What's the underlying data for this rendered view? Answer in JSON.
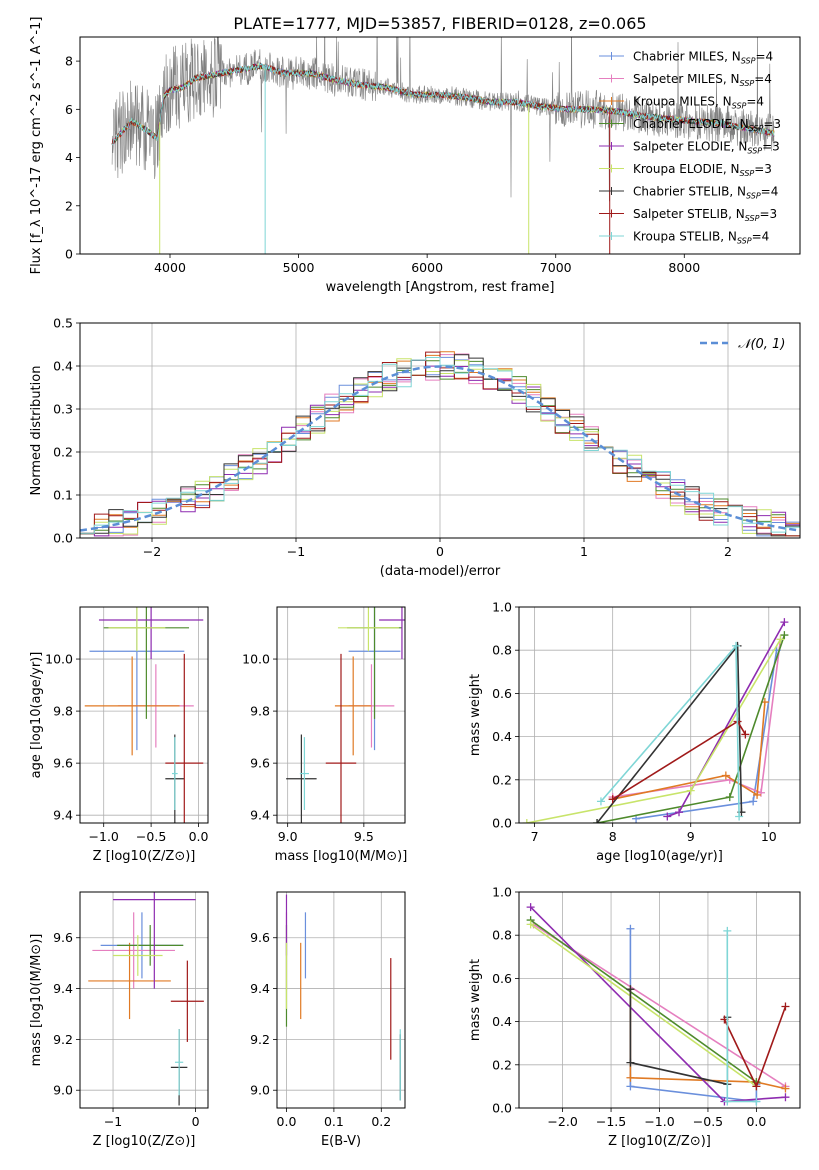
{
  "figure": {
    "title": "PLATE=1777, MJD=53857, FIBERID=0128, z=0.065"
  },
  "colors": {
    "models": [
      "#6a8fdc",
      "#e57fbf",
      "#e07a24",
      "#4e8a2c",
      "#8e2cb0",
      "#c8e46a",
      "#333333",
      "#a01a1a",
      "#7fd6d6"
    ],
    "data": "#808080",
    "gaussian": "#5b8ed6",
    "grid": "#b0b0b0"
  },
  "chart_data": [
    {
      "id": "spectrum",
      "type": "line",
      "xlabel": "wavelength [Angstrom, rest frame]",
      "ylabel": "Flux [f_λ 10^-17 erg cm^-2 s^-1 A^-1]",
      "xlim": [
        3300,
        8900
      ],
      "ylim": [
        0,
        9
      ],
      "xticks": [
        4000,
        5000,
        6000,
        7000,
        8000
      ],
      "yticks": [
        0,
        2,
        4,
        6,
        8
      ],
      "grid": false,
      "legend_position": "top-right",
      "legend": [
        {
          "base": "Chabrier MILES, N",
          "sub": "SSP",
          "tail": "=4"
        },
        {
          "base": "Salpeter MILES, N",
          "sub": "SSP",
          "tail": "=4"
        },
        {
          "base": "Kroupa MILES, N",
          "sub": "SSP",
          "tail": "=4"
        },
        {
          "base": "Chabrier ELODIE, N",
          "sub": "SSP",
          "tail": "=3"
        },
        {
          "base": "Salpeter ELODIE, N",
          "sub": "SSP",
          "tail": "=3"
        },
        {
          "base": "Kroupa ELODIE, N",
          "sub": "SSP",
          "tail": "=3"
        },
        {
          "base": "Chabrier STELIB, N",
          "sub": "SSP",
          "tail": "=4"
        },
        {
          "base": "Salpeter STELIB, N",
          "sub": "SSP",
          "tail": "=3"
        },
        {
          "base": "Kroupa STELIB, N",
          "sub": "SSP",
          "tail": "=4"
        }
      ],
      "continuum": {
        "x": [
          3550,
          3600,
          3700,
          3800,
          3900,
          3950,
          4000,
          4100,
          4200,
          4300,
          4400,
          4500,
          4700,
          4900,
          5100,
          5300,
          5500,
          5700,
          5900,
          6100,
          6300,
          6500,
          6700,
          6900,
          7100,
          7300,
          7500,
          7700,
          7900,
          8100,
          8300,
          8500,
          8700
        ],
        "y": [
          4.6,
          4.9,
          5.5,
          5.2,
          4.8,
          6.5,
          6.8,
          6.9,
          7.3,
          7.4,
          7.5,
          7.6,
          7.8,
          7.5,
          7.5,
          7.2,
          7.0,
          6.9,
          6.6,
          6.6,
          6.5,
          6.3,
          6.3,
          6.1,
          6.0,
          6.0,
          5.9,
          5.7,
          5.6,
          5.5,
          5.4,
          5.2,
          5.0
        ]
      }
    },
    {
      "id": "residuals",
      "type": "line",
      "xlabel": "(data-model)/error",
      "ylabel": "Normed distribution",
      "xlim": [
        -2.5,
        2.5
      ],
      "ylim": [
        0,
        0.5
      ],
      "xticks": [
        -2,
        -1,
        0,
        1,
        2
      ],
      "yticks": [
        0.0,
        0.1,
        0.2,
        0.3,
        0.4,
        0.5
      ],
      "grid": true,
      "legend_position": "top-right",
      "legend": [
        {
          "name": "𝒩(0, 1)"
        }
      ],
      "bin_width": 0.1,
      "curve": {
        "mu": 0,
        "sigma": 1
      }
    },
    {
      "id": "age_vs_Z",
      "type": "scatter",
      "xlabel": "Z [log10(Z/Z⊙)]",
      "ylabel": "age [log10(age/yr)]",
      "xlim": [
        -1.25,
        0.1
      ],
      "ylim": [
        9.37,
        10.2
      ],
      "xticks": [
        -1,
        -0.5,
        0
      ],
      "yticks": [
        9.4,
        9.6,
        9.8,
        10.0
      ],
      "grid": true,
      "points": [
        {
          "x": -0.65,
          "xerr": 0.5,
          "y": 10.03,
          "yerr": 0.38
        },
        {
          "x": -0.45,
          "xerr": 0.4,
          "y": 9.82,
          "yerr": 0.16
        },
        {
          "x": -0.7,
          "xerr": 0.5,
          "y": 9.82,
          "yerr": 0.19
        },
        {
          "x": -0.55,
          "xerr": 0.45,
          "y": 10.12,
          "yerr": 0.35
        },
        {
          "x": -0.5,
          "xerr": 0.55,
          "y": 10.15,
          "yerr": 0.15
        },
        {
          "x": -0.65,
          "xerr": 0.3,
          "y": 10.12,
          "yerr": 0.09
        },
        {
          "x": -0.25,
          "xerr": 0.1,
          "y": 9.54,
          "yerr": 0.17
        },
        {
          "x": -0.15,
          "xerr": 0.2,
          "y": 9.6,
          "yerr": 0.42
        },
        {
          "x": -0.25,
          "xerr": 0.03,
          "y": 9.56,
          "yerr": 0.14
        }
      ]
    },
    {
      "id": "age_vs_mass",
      "type": "scatter",
      "xlabel": "mass [log10(M/M⊙)]",
      "ylabel": "",
      "xlim": [
        8.93,
        9.77
      ],
      "ylim": [
        9.37,
        10.2
      ],
      "xticks": [
        9.0,
        9.5
      ],
      "yticks": [
        9.4,
        9.6,
        9.8,
        10.0
      ],
      "grid": true,
      "points": [
        {
          "x": 9.57,
          "xerr": 0.17,
          "y": 10.03,
          "yerr": 0.38
        },
        {
          "x": 9.55,
          "xerr": 0.15,
          "y": 9.82,
          "yerr": 0.16
        },
        {
          "x": 9.43,
          "xerr": 0.12,
          "y": 9.82,
          "yerr": 0.19
        },
        {
          "x": 9.57,
          "xerr": 0.18,
          "y": 10.12,
          "yerr": 0.35
        },
        {
          "x": 9.75,
          "xerr": 0.15,
          "y": 10.15,
          "yerr": 0.15
        },
        {
          "x": 9.53,
          "xerr": 0.2,
          "y": 10.12,
          "yerr": 0.09
        },
        {
          "x": 9.09,
          "xerr": 0.1,
          "y": 9.54,
          "yerr": 0.17
        },
        {
          "x": 9.35,
          "xerr": 0.1,
          "y": 9.6,
          "yerr": 0.42
        },
        {
          "x": 9.11,
          "xerr": 0.03,
          "y": 9.56,
          "yerr": 0.14
        }
      ]
    },
    {
      "id": "weight_vs_age",
      "type": "line",
      "xlabel": "age [log10(age/yr)]",
      "ylabel": "mass weight",
      "xlim": [
        6.8,
        10.4
      ],
      "ylim": [
        0,
        1.0
      ],
      "xticks": [
        7,
        8,
        9,
        10
      ],
      "yticks": [
        0.0,
        0.2,
        0.4,
        0.6,
        0.8,
        1.0
      ],
      "grid": true,
      "series": [
        {
          "x": [
            8.3,
            9.8,
            10.1
          ],
          "y": [
            0.02,
            0.1,
            0.8
          ]
        },
        {
          "x": [
            8.0,
            9.5,
            9.9,
            10.15
          ],
          "y": [
            0.12,
            0.2,
            0.14,
            0.85
          ]
        },
        {
          "x": [
            8.0,
            9.45,
            9.85,
            9.95
          ],
          "y": [
            0.11,
            0.22,
            0.13,
            0.56
          ]
        },
        {
          "x": [
            7.8,
            9.5,
            10.2
          ],
          "y": [
            0.0,
            0.12,
            0.87
          ]
        },
        {
          "x": [
            8.7,
            8.85,
            10.2
          ],
          "y": [
            0.03,
            0.05,
            0.93
          ]
        },
        {
          "x": [
            6.9,
            9.0,
            10.15
          ],
          "y": [
            0.0,
            0.15,
            0.85
          ]
        },
        {
          "x": [
            7.8,
            9.6,
            9.65
          ],
          "y": [
            0.0,
            0.82,
            0.05
          ]
        },
        {
          "x": [
            8.0,
            9.6,
            9.7
          ],
          "y": [
            0.11,
            0.47,
            0.41
          ]
        },
        {
          "x": [
            7.85,
            9.58,
            9.62
          ],
          "y": [
            0.1,
            0.82,
            0.03
          ]
        }
      ]
    },
    {
      "id": "mass_vs_Z",
      "type": "scatter",
      "xlabel": "Z [log10(Z/Z⊙)]",
      "ylabel": "mass [log10(M/M⊙)]",
      "xlim": [
        -1.4,
        0.15
      ],
      "ylim": [
        8.93,
        9.78
      ],
      "xticks": [
        -1,
        0
      ],
      "yticks": [
        9.0,
        9.2,
        9.4,
        9.6
      ],
      "grid": true,
      "points": [
        {
          "x": -0.65,
          "xerr": 0.5,
          "y": 9.57,
          "yerr": 0.13
        },
        {
          "x": -0.75,
          "xerr": 0.5,
          "y": 9.55,
          "yerr": 0.15
        },
        {
          "x": -0.8,
          "xerr": 0.5,
          "y": 9.43,
          "yerr": 0.15
        },
        {
          "x": -0.55,
          "xerr": 0.4,
          "y": 9.57,
          "yerr": 0.08
        },
        {
          "x": -0.5,
          "xerr": 0.5,
          "y": 9.75,
          "yerr": 0.35
        },
        {
          "x": -0.7,
          "xerr": 0.3,
          "y": 9.53,
          "yerr": 0.08
        },
        {
          "x": -0.2,
          "xerr": 0.1,
          "y": 9.09,
          "yerr": 0.15
        },
        {
          "x": -0.1,
          "xerr": 0.2,
          "y": 9.35,
          "yerr": 0.16
        },
        {
          "x": -0.2,
          "xerr": 0.05,
          "y": 9.11,
          "yerr": 0.13
        }
      ]
    },
    {
      "id": "mass_vs_ebv",
      "type": "scatter",
      "xlabel": "E(B-V)",
      "ylabel": "",
      "xlim": [
        -0.02,
        0.25
      ],
      "ylim": [
        8.93,
        9.78
      ],
      "xticks": [
        0.0,
        0.1,
        0.2
      ],
      "yticks": [
        9.0,
        9.2,
        9.4,
        9.6
      ],
      "grid": true,
      "points": [
        {
          "x": 0.04,
          "xerr": 0.0,
          "y": 9.57,
          "yerr": 0.13
        },
        {
          "x": 0.0,
          "xerr": 0.0,
          "y": 9.55,
          "yerr": 0.15
        },
        {
          "x": 0.03,
          "xerr": 0.0,
          "y": 9.43,
          "yerr": 0.15
        },
        {
          "x": 0.0,
          "xerr": 0.0,
          "y": 9.45,
          "yerr": 0.2
        },
        {
          "x": 0.0,
          "xerr": 0.0,
          "y": 9.65,
          "yerr": 0.12
        },
        {
          "x": 0.0,
          "xerr": 0.0,
          "y": 9.45,
          "yerr": 0.13
        },
        {
          "x": 0.24,
          "xerr": 0.0,
          "y": 9.09,
          "yerr": 0.13
        },
        {
          "x": 0.22,
          "xerr": 0.0,
          "y": 9.32,
          "yerr": 0.2
        },
        {
          "x": 0.24,
          "xerr": 0.0,
          "y": 9.1,
          "yerr": 0.14
        }
      ]
    },
    {
      "id": "weight_vs_Z",
      "type": "line",
      "xlabel": "Z [log10(Z/Z⊙)]",
      "ylabel": "mass weight",
      "xlim": [
        -2.45,
        0.45
      ],
      "ylim": [
        0,
        1.0
      ],
      "xticks": [
        -2.0,
        -1.5,
        -1.0,
        -0.5,
        0.0
      ],
      "yticks": [
        0.0,
        0.2,
        0.4,
        0.6,
        0.8,
        1.0
      ],
      "grid": true,
      "series": [
        {
          "x": [
            -1.3,
            -1.3,
            -0.0,
            -0.0
          ],
          "y": [
            0.83,
            0.1,
            0.03,
            0.11
          ]
        },
        {
          "x": [
            -2.3,
            0.3
          ],
          "y": [
            0.85,
            0.1
          ]
        },
        {
          "x": [
            -1.3,
            -1.3,
            0.0,
            0.3
          ],
          "y": [
            0.55,
            0.14,
            0.12,
            0.09
          ]
        },
        {
          "x": [
            -2.33,
            0.0
          ],
          "y": [
            0.87,
            0.12
          ]
        },
        {
          "x": [
            -2.33,
            -0.33,
            0.3
          ],
          "y": [
            0.93,
            0.03,
            0.05
          ]
        },
        {
          "x": [
            -2.33,
            0.0
          ],
          "y": [
            0.85,
            0.1
          ]
        },
        {
          "x": [
            -1.3,
            -1.3,
            -0.3,
            -0.3
          ],
          "y": [
            0.55,
            0.21,
            0.11,
            0.42
          ]
        },
        {
          "x": [
            -0.33,
            0.0,
            0.3
          ],
          "y": [
            0.41,
            0.1,
            0.47
          ]
        },
        {
          "x": [
            -0.3,
            -0.3,
            0.0
          ],
          "y": [
            0.82,
            0.03,
            0.03
          ]
        }
      ]
    }
  ]
}
